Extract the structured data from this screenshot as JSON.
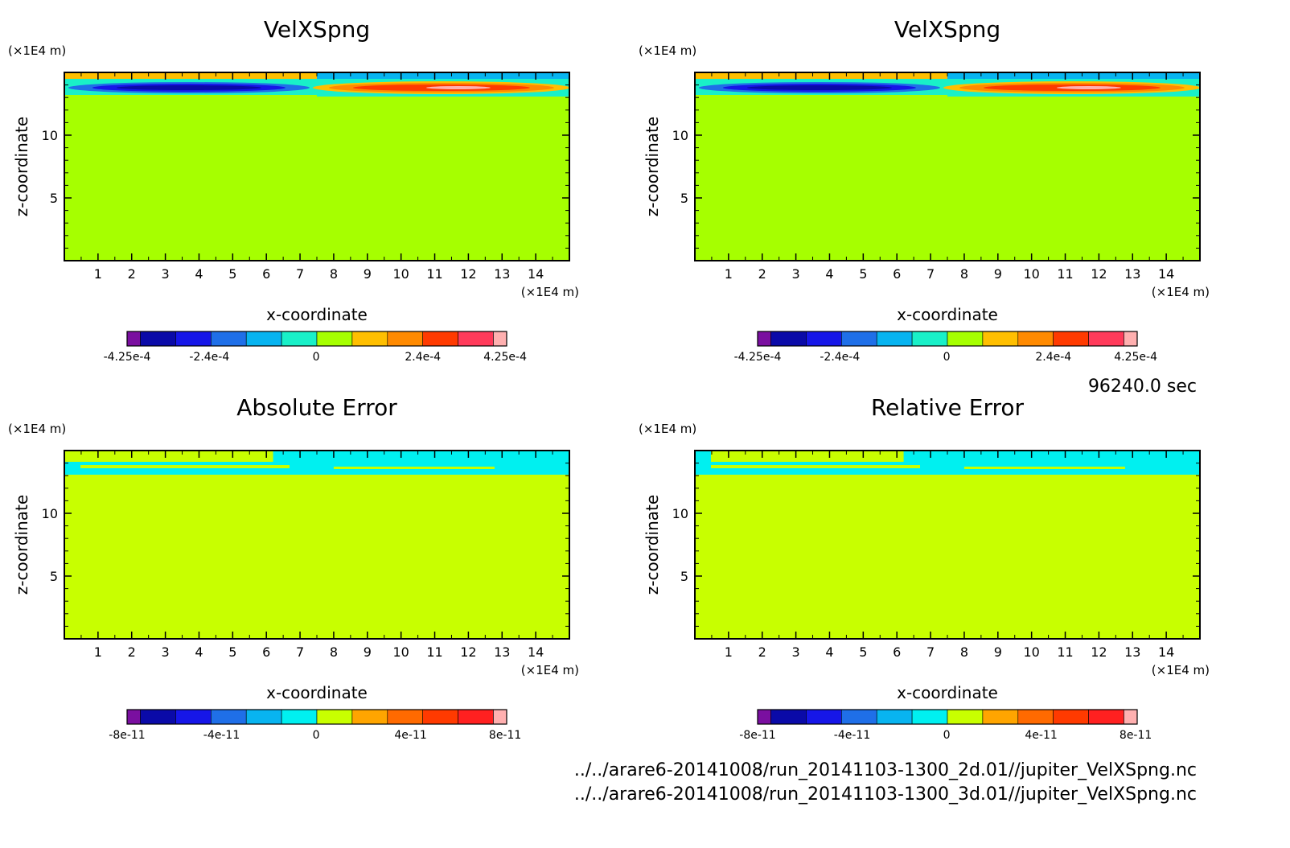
{
  "panels": [
    {
      "title": "VelXSpng",
      "field": "vel"
    },
    {
      "title": "VelXSpng",
      "field": "vel"
    },
    {
      "title": "Absolute Error",
      "field": "err"
    },
    {
      "title": "Relative Error",
      "field": "rel"
    }
  ],
  "time_label": "96240.0 sec",
  "files": [
    "../../arare6-20141008/run_20141103-1300_2d.01//jupiter_VelXSpng.nc",
    "../../arare6-20141008/run_20141103-1300_3d.01//jupiter_VelXSpng.nc"
  ],
  "chart_data": [
    {
      "type": "heatmap",
      "title": "VelXSpng",
      "xlabel": "x-coordinate",
      "ylabel": "z-coordinate",
      "xunit": "(×1E4 m)",
      "yunit": "(×1E4 m)",
      "xlim": [
        0,
        15
      ],
      "ylim": [
        0,
        15
      ],
      "xticks": [
        "1",
        "2",
        "3",
        "4",
        "5",
        "6",
        "7",
        "8",
        "9",
        "10",
        "11",
        "12",
        "13",
        "14"
      ],
      "yticks": [
        "5",
        "10"
      ],
      "colorbar": {
        "colors": [
          "#7a0fa0",
          "#0a0aa8",
          "#1616e8",
          "#1f6fe8",
          "#08b4f0",
          "#19f0c8",
          "#a6ff00",
          "#ffbf00",
          "#ff8a00",
          "#ff3a00",
          "#ff3a5a",
          "#ffb0b0"
        ],
        "tick_labels": [
          "-4.25e-4",
          "-2.4e-4",
          "0",
          "2.4e-4",
          "4.25e-4"
        ],
        "tick_values": [
          -0.000425,
          -0.00024,
          0,
          0.00024,
          0.000425
        ]
      },
      "background_value": 0,
      "features": [
        {
          "x_range": [
            0,
            7.5
          ],
          "z_range": [
            13.6,
            14.0
          ],
          "value": -0.00035,
          "note": "negative band"
        },
        {
          "x_range": [
            7.5,
            15
          ],
          "z_range": [
            13.4,
            14.0
          ],
          "value": 0.00035,
          "note": "positive band"
        }
      ]
    },
    {
      "type": "heatmap",
      "title": "VelXSpng",
      "xlabel": "x-coordinate",
      "ylabel": "z-coordinate",
      "xunit": "(×1E4 m)",
      "yunit": "(×1E4 m)",
      "xlim": [
        0,
        15
      ],
      "ylim": [
        0,
        15
      ],
      "xticks": [
        "1",
        "2",
        "3",
        "4",
        "5",
        "6",
        "7",
        "8",
        "9",
        "10",
        "11",
        "12",
        "13",
        "14"
      ],
      "yticks": [
        "5",
        "10"
      ],
      "colorbar": {
        "colors": [
          "#7a0fa0",
          "#0a0aa8",
          "#1616e8",
          "#1f6fe8",
          "#08b4f0",
          "#19f0c8",
          "#a6ff00",
          "#ffbf00",
          "#ff8a00",
          "#ff3a00",
          "#ff3a5a",
          "#ffb0b0"
        ],
        "tick_labels": [
          "-4.25e-4",
          "-2.4e-4",
          "0",
          "2.4e-4",
          "4.25e-4"
        ],
        "tick_values": [
          -0.000425,
          -0.00024,
          0,
          0.00024,
          0.000425
        ]
      },
      "background_value": 0,
      "features": [
        {
          "x_range": [
            0,
            7.5
          ],
          "z_range": [
            13.6,
            14.0
          ],
          "value": -0.00035
        },
        {
          "x_range": [
            7.5,
            15
          ],
          "z_range": [
            13.4,
            14.0
          ],
          "value": 0.00035
        }
      ]
    },
    {
      "type": "heatmap",
      "title": "Absolute Error",
      "xlabel": "x-coordinate",
      "ylabel": "z-coordinate",
      "xunit": "(×1E4 m)",
      "yunit": "(×1E4 m)",
      "xlim": [
        0,
        15
      ],
      "ylim": [
        0,
        15
      ],
      "xticks": [
        "1",
        "2",
        "3",
        "4",
        "5",
        "6",
        "7",
        "8",
        "9",
        "10",
        "11",
        "12",
        "13",
        "14"
      ],
      "yticks": [
        "5",
        "10"
      ],
      "colorbar": {
        "colors": [
          "#7a0fa0",
          "#0a0aa8",
          "#1616e8",
          "#1f6fe8",
          "#08b4f0",
          "#00f0f0",
          "#c8ff00",
          "#ffa500",
          "#ff6a00",
          "#ff3a00",
          "#ff2020",
          "#ffb0b0"
        ],
        "tick_labels": [
          "-8e-11",
          "-4e-11",
          "0",
          "4e-11",
          "8e-11"
        ],
        "tick_values": [
          -8e-11,
          -4e-11,
          0,
          4e-11,
          8e-11
        ]
      },
      "background_value": 0,
      "features": [
        {
          "x_range": [
            0,
            15
          ],
          "z_range": [
            13.0,
            14.5
          ],
          "value": -1e-11,
          "note": "cyan band near top"
        }
      ]
    },
    {
      "type": "heatmap",
      "title": "Relative Error",
      "xlabel": "x-coordinate",
      "ylabel": "z-coordinate",
      "xunit": "(×1E4 m)",
      "yunit": "(×1E4 m)",
      "xlim": [
        0,
        15
      ],
      "ylim": [
        0,
        15
      ],
      "xticks": [
        "1",
        "2",
        "3",
        "4",
        "5",
        "6",
        "7",
        "8",
        "9",
        "10",
        "11",
        "12",
        "13",
        "14"
      ],
      "yticks": [
        "5",
        "10"
      ],
      "colorbar": {
        "colors": [
          "#7a0fa0",
          "#0a0aa8",
          "#1616e8",
          "#1f6fe8",
          "#08b4f0",
          "#00f0f0",
          "#c8ff00",
          "#ffa500",
          "#ff6a00",
          "#ff3a00",
          "#ff2020",
          "#ffb0b0"
        ],
        "tick_labels": [
          "-8e-11",
          "-4e-11",
          "0",
          "4e-11",
          "8e-11"
        ],
        "tick_values": [
          -8e-11,
          -4e-11,
          0,
          4e-11,
          8e-11
        ]
      },
      "background_value": 0,
      "features": [
        {
          "x_range": [
            0,
            15
          ],
          "z_range": [
            13.0,
            14.6
          ],
          "value": -1e-11,
          "note": "cyan band near top"
        }
      ]
    }
  ]
}
